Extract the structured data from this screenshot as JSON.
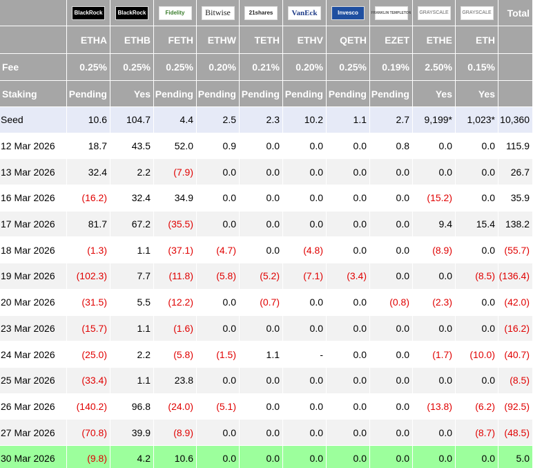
{
  "header": {
    "logos": [
      "BlackRock",
      "BlackRock",
      "Fidelity",
      "Bitwise",
      "21shares",
      "VanEck",
      "Invesco",
      "FRANKLIN TEMPLETON",
      "GRAYSCALE",
      "GRAYSCALE"
    ],
    "total": "Total",
    "tickers": [
      "ETHA",
      "ETHB",
      "FETH",
      "ETHW",
      "TETH",
      "ETHV",
      "QETH",
      "EZET",
      "ETHE",
      "ETH"
    ],
    "fee": {
      "label": "Fee",
      "values": [
        "0.25%",
        "0.25%",
        "0.25%",
        "0.20%",
        "0.21%",
        "0.20%",
        "0.25%",
        "0.19%",
        "2.50%",
        "0.15%"
      ]
    },
    "staking": {
      "label": "Staking",
      "values": [
        "Pending",
        "Yes",
        "Pending",
        "Pending",
        "Pending",
        "Pending",
        "Pending",
        "Pending",
        "Yes",
        "Yes"
      ]
    }
  },
  "rows": [
    {
      "label": "Seed",
      "values": [
        "10.6",
        "104.7",
        "4.4",
        "2.5",
        "2.3",
        "10.2",
        "1.1",
        "2.7",
        "9,199*",
        "1,023*",
        "10,360"
      ]
    },
    {
      "label": "12 Mar 2026",
      "values": [
        "18.7",
        "43.5",
        "52.0",
        "0.9",
        "0.0",
        "0.0",
        "0.0",
        "0.8",
        "0.0",
        "0.0",
        "115.9"
      ]
    },
    {
      "label": "13 Mar 2026",
      "values": [
        "32.4",
        "2.2",
        "(7.9)",
        "0.0",
        "0.0",
        "0.0",
        "0.0",
        "0.0",
        "0.0",
        "0.0",
        "26.7"
      ]
    },
    {
      "label": "16 Mar 2026",
      "values": [
        "(16.2)",
        "32.4",
        "34.9",
        "0.0",
        "0.0",
        "0.0",
        "0.0",
        "0.0",
        "(15.2)",
        "0.0",
        "35.9"
      ]
    },
    {
      "label": "17 Mar 2026",
      "values": [
        "81.7",
        "67.2",
        "(35.5)",
        "0.0",
        "0.0",
        "0.0",
        "0.0",
        "0.0",
        "9.4",
        "15.4",
        "138.2"
      ]
    },
    {
      "label": "18 Mar 2026",
      "values": [
        "(1.3)",
        "1.1",
        "(37.1)",
        "(4.7)",
        "0.0",
        "(4.8)",
        "0.0",
        "0.0",
        "(8.9)",
        "0.0",
        "(55.7)"
      ]
    },
    {
      "label": "19 Mar 2026",
      "values": [
        "(102.3)",
        "7.7",
        "(11.8)",
        "(5.8)",
        "(5.2)",
        "(7.1)",
        "(3.4)",
        "0.0",
        "0.0",
        "(8.5)",
        "(136.4)"
      ]
    },
    {
      "label": "20 Mar 2026",
      "values": [
        "(31.5)",
        "5.5",
        "(12.2)",
        "0.0",
        "(0.7)",
        "0.0",
        "0.0",
        "(0.8)",
        "(2.3)",
        "0.0",
        "(42.0)"
      ]
    },
    {
      "label": "23 Mar 2026",
      "values": [
        "(15.7)",
        "1.1",
        "(1.6)",
        "0.0",
        "0.0",
        "0.0",
        "0.0",
        "0.0",
        "0.0",
        "0.0",
        "(16.2)"
      ]
    },
    {
      "label": "24 Mar 2026",
      "values": [
        "(25.0)",
        "2.2",
        "(5.8)",
        "(1.5)",
        "1.1",
        "-",
        "0.0",
        "0.0",
        "(1.7)",
        "(10.0)",
        "(40.7)"
      ]
    },
    {
      "label": "25 Mar 2026",
      "values": [
        "(33.4)",
        "1.1",
        "23.8",
        "0.0",
        "0.0",
        "0.0",
        "0.0",
        "0.0",
        "0.0",
        "0.0",
        "(8.5)"
      ]
    },
    {
      "label": "26 Mar 2026",
      "values": [
        "(140.2)",
        "96.8",
        "(24.0)",
        "(5.1)",
        "0.0",
        "0.0",
        "0.0",
        "0.0",
        "(13.8)",
        "(6.2)",
        "(92.5)"
      ]
    },
    {
      "label": "27 Mar 2026",
      "values": [
        "(70.8)",
        "39.9",
        "(8.9)",
        "0.0",
        "0.0",
        "0.0",
        "0.0",
        "0.0",
        "0.0",
        "(8.7)",
        "(48.5)"
      ]
    },
    {
      "label": "30 Mar 2026",
      "values": [
        "(9.8)",
        "4.2",
        "10.6",
        "0.0",
        "0.0",
        "0.0",
        "0.0",
        "0.0",
        "0.0",
        "0.0",
        "5.0"
      ]
    }
  ]
}
